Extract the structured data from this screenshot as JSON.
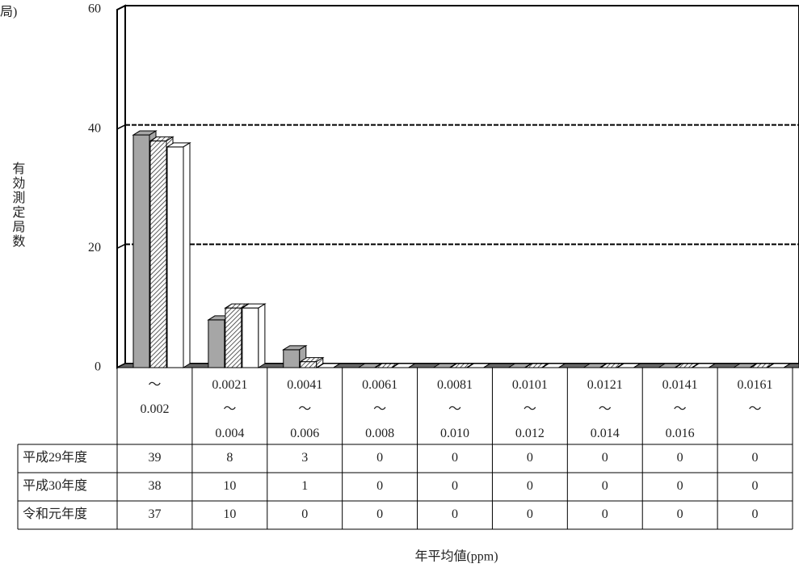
{
  "chart_data": {
    "type": "bar3d",
    "unit_label": "局)",
    "y_label": "有効測定局数",
    "x_label": "年平均値(ppm)",
    "categories": [
      "～\n0.002",
      "0.0021\n～\n0.004",
      "0.0041\n～\n0.006",
      "0.0061\n～\n0.008",
      "0.0081\n～\n0.010",
      "0.0101\n～\n0.012",
      "0.0121\n～\n0.014",
      "0.0141\n～\n0.016",
      "0.0161\n～"
    ],
    "series": [
      {
        "name": "平成29年度",
        "color": "#a6a6a6",
        "values": [
          39,
          8,
          3,
          0,
          0,
          0,
          0,
          0,
          0
        ]
      },
      {
        "name": "平成30年度",
        "color": "#ffffff",
        "hatch": true,
        "values": [
          38,
          10,
          1,
          0,
          0,
          0,
          0,
          0,
          0
        ]
      },
      {
        "name": "令和元年度",
        "color": "#ffffff",
        "values": [
          37,
          10,
          0,
          0,
          0,
          0,
          0,
          0,
          0
        ]
      }
    ],
    "ylim": [
      0,
      60
    ],
    "yticks": [
      0,
      20,
      40,
      60
    ],
    "grid": true
  }
}
